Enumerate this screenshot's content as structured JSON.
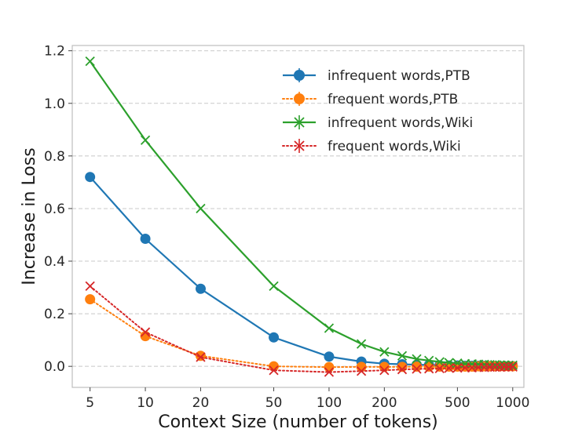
{
  "chart_data": {
    "type": "line",
    "title": "",
    "xlabel": "Context Size (number of tokens)",
    "ylabel": "Increase in Loss",
    "xscale": "log",
    "xlim": [
      4,
      1150
    ],
    "ylim": [
      -0.08,
      1.22
    ],
    "x_ticks": [
      5,
      10,
      20,
      50,
      100,
      200,
      500,
      1000
    ],
    "x_tick_labels": [
      "5",
      "10",
      "20",
      "50",
      "100",
      "200",
      "500",
      "1000"
    ],
    "y_ticks": [
      0.0,
      0.2,
      0.4,
      0.6,
      0.8,
      1.0,
      1.2
    ],
    "y_tick_labels": [
      "0.0",
      "0.2",
      "0.4",
      "0.6",
      "0.8",
      "1.0",
      "1.2"
    ],
    "grid": "y-dashed",
    "legend_position": "top-right",
    "x": [
      5,
      10,
      20,
      50,
      100,
      150,
      200,
      250,
      300,
      350,
      400,
      450,
      500,
      550,
      600,
      650,
      700,
      750,
      800,
      850,
      900,
      950,
      1000
    ],
    "series": [
      {
        "name": "infrequent words,PTB",
        "color": "#1f77b4",
        "marker": "circle",
        "linestyle": "solid",
        "values": [
          0.72,
          0.485,
          0.295,
          0.11,
          0.037,
          0.018,
          0.01,
          0.008,
          0.006,
          0.005,
          0.004,
          0.003,
          0.003,
          0.002,
          0.002,
          0.002,
          0.002,
          0.001,
          0.001,
          0.001,
          0.001,
          0.001,
          0.001
        ]
      },
      {
        "name": "frequent words,PTB",
        "color": "#ff7f0e",
        "marker": "circle",
        "linestyle": "dotted",
        "values": [
          0.255,
          0.115,
          0.04,
          0.0,
          -0.003,
          -0.002,
          -0.002,
          -0.002,
          -0.001,
          -0.001,
          -0.001,
          -0.001,
          -0.001,
          -0.001,
          -0.001,
          0.0,
          0.0,
          0.0,
          0.0,
          0.0,
          0.0,
          0.0,
          0.0
        ]
      },
      {
        "name": "infrequent words,Wiki",
        "color": "#2ca02c",
        "marker": "x",
        "linestyle": "solid",
        "values": [
          1.16,
          0.86,
          0.6,
          0.305,
          0.145,
          0.085,
          0.055,
          0.04,
          0.028,
          0.022,
          0.017,
          0.014,
          0.012,
          0.01,
          0.009,
          0.008,
          0.007,
          0.006,
          0.006,
          0.005,
          0.005,
          0.004,
          0.004
        ]
      },
      {
        "name": "frequent words,Wiki",
        "color": "#d62728",
        "marker": "x",
        "linestyle": "dotted",
        "values": [
          0.305,
          0.13,
          0.035,
          -0.015,
          -0.022,
          -0.018,
          -0.015,
          -0.012,
          -0.01,
          -0.009,
          -0.008,
          -0.007,
          -0.006,
          -0.005,
          -0.005,
          -0.004,
          -0.004,
          -0.003,
          -0.003,
          -0.003,
          -0.002,
          -0.002,
          -0.002
        ]
      }
    ]
  }
}
